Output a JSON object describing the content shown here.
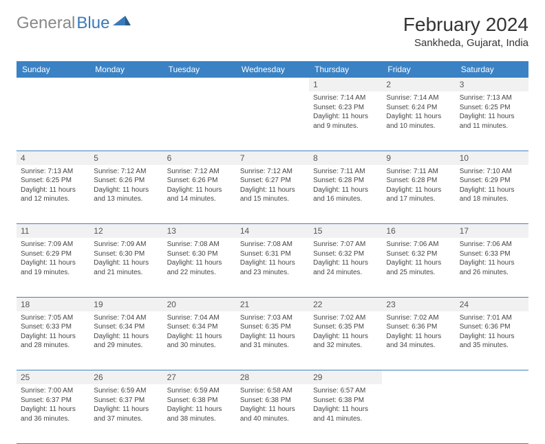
{
  "logo": {
    "part1": "General",
    "part2": "Blue"
  },
  "title": "February 2024",
  "location": "Sankheda, Gujarat, India",
  "colors": {
    "header_bg": "#3a82c4",
    "header_fg": "#ffffff",
    "daynum_bg": "#f1f1f1",
    "border": "#3a82c4",
    "text": "#444444",
    "logo_gray": "#888888",
    "logo_blue": "#3a7ab8"
  },
  "weekdays": [
    "Sunday",
    "Monday",
    "Tuesday",
    "Wednesday",
    "Thursday",
    "Friday",
    "Saturday"
  ],
  "weeks": [
    [
      null,
      null,
      null,
      null,
      {
        "n": "1",
        "sr": "7:14 AM",
        "ss": "6:23 PM",
        "dl": "11 hours and 9 minutes."
      },
      {
        "n": "2",
        "sr": "7:14 AM",
        "ss": "6:24 PM",
        "dl": "11 hours and 10 minutes."
      },
      {
        "n": "3",
        "sr": "7:13 AM",
        "ss": "6:25 PM",
        "dl": "11 hours and 11 minutes."
      }
    ],
    [
      {
        "n": "4",
        "sr": "7:13 AM",
        "ss": "6:25 PM",
        "dl": "11 hours and 12 minutes."
      },
      {
        "n": "5",
        "sr": "7:12 AM",
        "ss": "6:26 PM",
        "dl": "11 hours and 13 minutes."
      },
      {
        "n": "6",
        "sr": "7:12 AM",
        "ss": "6:26 PM",
        "dl": "11 hours and 14 minutes."
      },
      {
        "n": "7",
        "sr": "7:12 AM",
        "ss": "6:27 PM",
        "dl": "11 hours and 15 minutes."
      },
      {
        "n": "8",
        "sr": "7:11 AM",
        "ss": "6:28 PM",
        "dl": "11 hours and 16 minutes."
      },
      {
        "n": "9",
        "sr": "7:11 AM",
        "ss": "6:28 PM",
        "dl": "11 hours and 17 minutes."
      },
      {
        "n": "10",
        "sr": "7:10 AM",
        "ss": "6:29 PM",
        "dl": "11 hours and 18 minutes."
      }
    ],
    [
      {
        "n": "11",
        "sr": "7:09 AM",
        "ss": "6:29 PM",
        "dl": "11 hours and 19 minutes."
      },
      {
        "n": "12",
        "sr": "7:09 AM",
        "ss": "6:30 PM",
        "dl": "11 hours and 21 minutes."
      },
      {
        "n": "13",
        "sr": "7:08 AM",
        "ss": "6:30 PM",
        "dl": "11 hours and 22 minutes."
      },
      {
        "n": "14",
        "sr": "7:08 AM",
        "ss": "6:31 PM",
        "dl": "11 hours and 23 minutes."
      },
      {
        "n": "15",
        "sr": "7:07 AM",
        "ss": "6:32 PM",
        "dl": "11 hours and 24 minutes."
      },
      {
        "n": "16",
        "sr": "7:06 AM",
        "ss": "6:32 PM",
        "dl": "11 hours and 25 minutes."
      },
      {
        "n": "17",
        "sr": "7:06 AM",
        "ss": "6:33 PM",
        "dl": "11 hours and 26 minutes."
      }
    ],
    [
      {
        "n": "18",
        "sr": "7:05 AM",
        "ss": "6:33 PM",
        "dl": "11 hours and 28 minutes."
      },
      {
        "n": "19",
        "sr": "7:04 AM",
        "ss": "6:34 PM",
        "dl": "11 hours and 29 minutes."
      },
      {
        "n": "20",
        "sr": "7:04 AM",
        "ss": "6:34 PM",
        "dl": "11 hours and 30 minutes."
      },
      {
        "n": "21",
        "sr": "7:03 AM",
        "ss": "6:35 PM",
        "dl": "11 hours and 31 minutes."
      },
      {
        "n": "22",
        "sr": "7:02 AM",
        "ss": "6:35 PM",
        "dl": "11 hours and 32 minutes."
      },
      {
        "n": "23",
        "sr": "7:02 AM",
        "ss": "6:36 PM",
        "dl": "11 hours and 34 minutes."
      },
      {
        "n": "24",
        "sr": "7:01 AM",
        "ss": "6:36 PM",
        "dl": "11 hours and 35 minutes."
      }
    ],
    [
      {
        "n": "25",
        "sr": "7:00 AM",
        "ss": "6:37 PM",
        "dl": "11 hours and 36 minutes."
      },
      {
        "n": "26",
        "sr": "6:59 AM",
        "ss": "6:37 PM",
        "dl": "11 hours and 37 minutes."
      },
      {
        "n": "27",
        "sr": "6:59 AM",
        "ss": "6:38 PM",
        "dl": "11 hours and 38 minutes."
      },
      {
        "n": "28",
        "sr": "6:58 AM",
        "ss": "6:38 PM",
        "dl": "11 hours and 40 minutes."
      },
      {
        "n": "29",
        "sr": "6:57 AM",
        "ss": "6:38 PM",
        "dl": "11 hours and 41 minutes."
      },
      null,
      null
    ]
  ],
  "labels": {
    "sunrise": "Sunrise: ",
    "sunset": "Sunset: ",
    "daylight": "Daylight: "
  }
}
